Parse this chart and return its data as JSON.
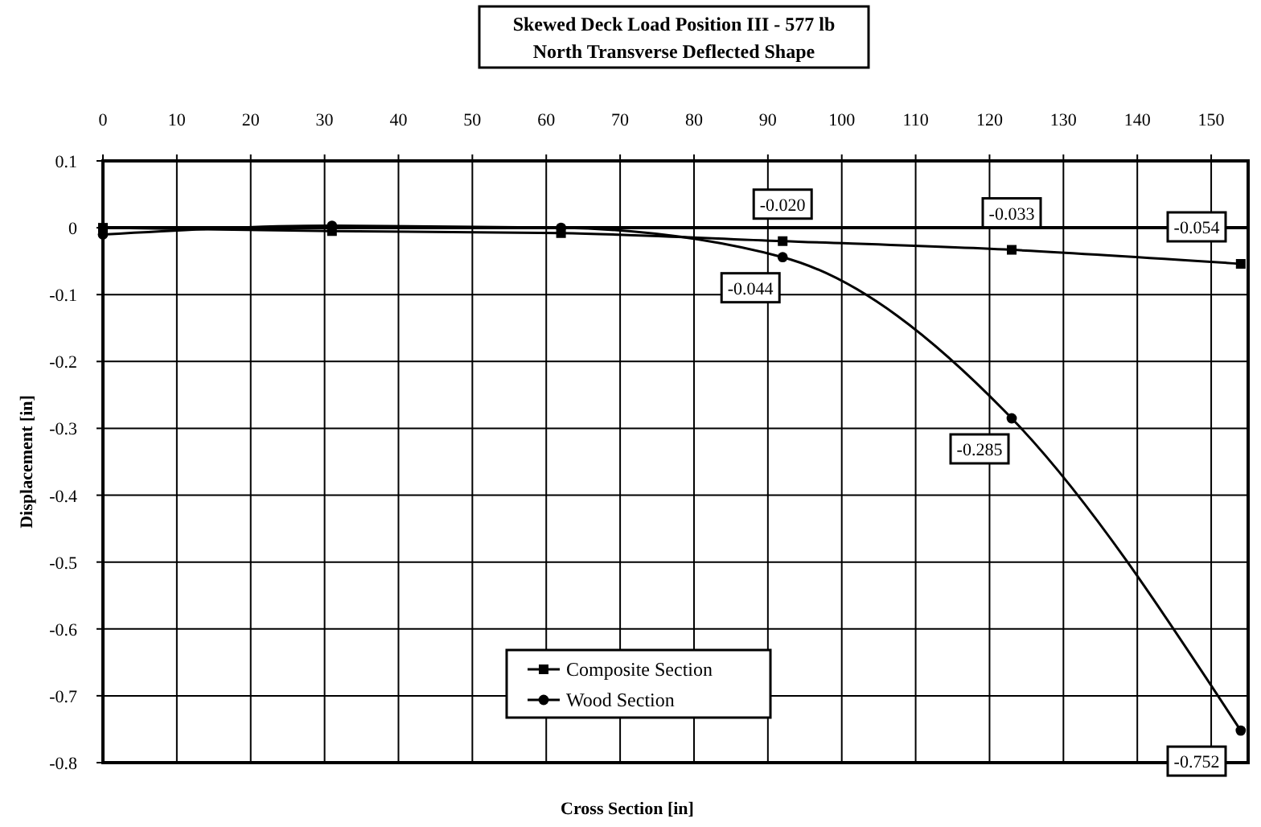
{
  "chart_data": {
    "type": "line",
    "title": "Skewed Deck Load Position III - 577 lb",
    "subtitle": "North Transverse Deflected Shape",
    "xlabel": "Cross Section [in]",
    "ylabel": "Displacement [in]",
    "x": [
      0,
      31,
      62,
      92,
      123,
      154
    ],
    "series": [
      {
        "name": "Composite Section",
        "color": "#000000",
        "marker": "square",
        "values": [
          0,
          -0.005,
          -0.008,
          -0.02,
          -0.033,
          -0.054
        ],
        "value_labels": [
          null,
          null,
          null,
          "-0.020",
          "-0.033",
          "-0.054"
        ]
      },
      {
        "name": "Wood Section",
        "color": "#000000",
        "marker": "circle",
        "values": [
          -0.01,
          0.003,
          0,
          -0.044,
          -0.285,
          -0.752
        ],
        "value_labels": [
          null,
          null,
          null,
          "-0.044",
          "-0.285",
          "-0.752"
        ]
      }
    ],
    "xlim": [
      0,
      155
    ],
    "xticks": [
      0,
      10,
      20,
      30,
      40,
      50,
      60,
      70,
      80,
      90,
      100,
      110,
      120,
      130,
      140,
      150
    ],
    "ylim": [
      -0.8,
      0.1
    ],
    "yticks": [
      0.1,
      0,
      -0.1,
      -0.2,
      -0.3,
      -0.4,
      -0.5,
      -0.6,
      -0.7,
      -0.8
    ],
    "grid": true,
    "legend": "bottom",
    "line_style": "solid"
  }
}
